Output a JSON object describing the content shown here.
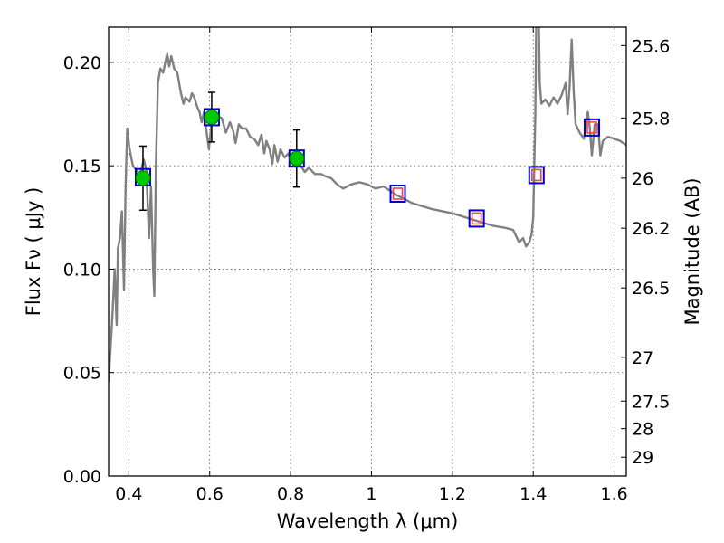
{
  "chart_data": {
    "type": "line",
    "title": "",
    "xlabel": "Wavelength  λ (μm)",
    "ylabel": "Flux  Fν  ( μJy )",
    "y2label": "Magnitude (AB)",
    "xlim": [
      0.35,
      1.63
    ],
    "ylim": [
      0.0,
      0.217
    ],
    "grid": true,
    "x_ticks": [
      0.4,
      0.6,
      0.8,
      1.0,
      1.2,
      1.4,
      1.6
    ],
    "x_tick_labels": [
      "0.4",
      "0.6",
      "0.8",
      "1",
      "1.2",
      "1.4",
      "1.6"
    ],
    "y_ticks": [
      0.0,
      0.05,
      0.1,
      0.15,
      0.2
    ],
    "y_tick_labels": [
      "0.00",
      "0.05",
      "0.10",
      "0.15",
      "0.20"
    ],
    "y2_ticks": [
      {
        "label": "25.6",
        "flux": 0.2081
      },
      {
        "label": "25.8",
        "flux": 0.1731
      },
      {
        "label": "26",
        "flux": 0.144
      },
      {
        "label": "26.2",
        "flux": 0.1198
      },
      {
        "label": "26.5",
        "flux": 0.0909
      },
      {
        "label": "27",
        "flux": 0.0574
      },
      {
        "label": "27.5",
        "flux": 0.0362
      },
      {
        "label": "28",
        "flux": 0.0229
      },
      {
        "label": "29",
        "flux": 0.0091
      }
    ],
    "series": [
      {
        "kind": "model_spectrum",
        "color": "#808080",
        "points": [
          [
            0.35,
            0.045
          ],
          [
            0.36,
            0.08
          ],
          [
            0.365,
            0.1
          ],
          [
            0.37,
            0.073
          ],
          [
            0.373,
            0.11
          ],
          [
            0.378,
            0.115
          ],
          [
            0.383,
            0.128
          ],
          [
            0.388,
            0.09
          ],
          [
            0.392,
            0.14
          ],
          [
            0.396,
            0.168
          ],
          [
            0.402,
            0.158
          ],
          [
            0.41,
            0.15
          ],
          [
            0.418,
            0.148
          ],
          [
            0.425,
            0.145
          ],
          [
            0.43,
            0.148
          ],
          [
            0.437,
            0.153
          ],
          [
            0.443,
            0.148
          ],
          [
            0.45,
            0.115
          ],
          [
            0.455,
            0.14
          ],
          [
            0.46,
            0.1
          ],
          [
            0.463,
            0.087
          ],
          [
            0.467,
            0.15
          ],
          [
            0.472,
            0.19
          ],
          [
            0.478,
            0.197
          ],
          [
            0.485,
            0.195
          ],
          [
            0.49,
            0.2
          ],
          [
            0.495,
            0.204
          ],
          [
            0.5,
            0.198
          ],
          [
            0.505,
            0.203
          ],
          [
            0.512,
            0.197
          ],
          [
            0.52,
            0.195
          ],
          [
            0.528,
            0.186
          ],
          [
            0.535,
            0.18
          ],
          [
            0.54,
            0.183
          ],
          [
            0.55,
            0.181
          ],
          [
            0.556,
            0.185
          ],
          [
            0.562,
            0.183
          ],
          [
            0.57,
            0.178
          ],
          [
            0.575,
            0.176
          ],
          [
            0.58,
            0.171
          ],
          [
            0.586,
            0.176
          ],
          [
            0.592,
            0.167
          ],
          [
            0.598,
            0.158
          ],
          [
            0.605,
            0.172
          ],
          [
            0.612,
            0.176
          ],
          [
            0.62,
            0.174
          ],
          [
            0.63,
            0.173
          ],
          [
            0.64,
            0.166
          ],
          [
            0.65,
            0.171
          ],
          [
            0.658,
            0.167
          ],
          [
            0.664,
            0.161
          ],
          [
            0.672,
            0.17
          ],
          [
            0.68,
            0.168
          ],
          [
            0.69,
            0.168
          ],
          [
            0.7,
            0.164
          ],
          [
            0.71,
            0.163
          ],
          [
            0.72,
            0.16
          ],
          [
            0.728,
            0.165
          ],
          [
            0.735,
            0.156
          ],
          [
            0.74,
            0.162
          ],
          [
            0.748,
            0.158
          ],
          [
            0.755,
            0.151
          ],
          [
            0.76,
            0.16
          ],
          [
            0.768,
            0.152
          ],
          [
            0.775,
            0.158
          ],
          [
            0.785,
            0.154
          ],
          [
            0.795,
            0.156
          ],
          [
            0.8,
            0.152
          ],
          [
            0.808,
            0.15
          ],
          [
            0.815,
            0.154
          ],
          [
            0.825,
            0.15
          ],
          [
            0.835,
            0.147
          ],
          [
            0.845,
            0.149
          ],
          [
            0.86,
            0.146
          ],
          [
            0.875,
            0.146
          ],
          [
            0.885,
            0.145
          ],
          [
            0.9,
            0.144
          ],
          [
            0.915,
            0.141
          ],
          [
            0.93,
            0.139
          ],
          [
            0.95,
            0.141
          ],
          [
            0.97,
            0.142
          ],
          [
            0.99,
            0.141
          ],
          [
            1.01,
            0.139
          ],
          [
            1.03,
            0.14
          ],
          [
            1.06,
            0.136
          ],
          [
            1.1,
            0.132
          ],
          [
            1.15,
            0.129
          ],
          [
            1.2,
            0.127
          ],
          [
            1.25,
            0.124
          ],
          [
            1.3,
            0.121
          ],
          [
            1.33,
            0.12
          ],
          [
            1.35,
            0.119
          ],
          [
            1.365,
            0.113
          ],
          [
            1.375,
            0.115
          ],
          [
            1.382,
            0.111
          ],
          [
            1.39,
            0.113
          ],
          [
            1.396,
            0.117
          ],
          [
            1.4,
            0.125
          ],
          [
            1.405,
            0.175
          ],
          [
            1.408,
            0.23
          ],
          [
            1.413,
            0.23
          ],
          [
            1.416,
            0.19
          ],
          [
            1.42,
            0.18
          ],
          [
            1.43,
            0.182
          ],
          [
            1.44,
            0.179
          ],
          [
            1.45,
            0.183
          ],
          [
            1.46,
            0.18
          ],
          [
            1.47,
            0.184
          ],
          [
            1.48,
            0.19
          ],
          [
            1.485,
            0.175
          ],
          [
            1.49,
            0.188
          ],
          [
            1.495,
            0.211
          ],
          [
            1.5,
            0.186
          ],
          [
            1.505,
            0.17
          ],
          [
            1.515,
            0.166
          ],
          [
            1.525,
            0.163
          ],
          [
            1.535,
            0.176
          ],
          [
            1.54,
            0.168
          ],
          [
            1.545,
            0.155
          ],
          [
            1.552,
            0.17
          ],
          [
            1.56,
            0.17
          ],
          [
            1.566,
            0.155
          ],
          [
            1.572,
            0.162
          ],
          [
            1.585,
            0.164
          ],
          [
            1.6,
            0.163
          ],
          [
            1.615,
            0.162
          ],
          [
            1.63,
            0.16
          ]
        ]
      },
      {
        "kind": "observed_points",
        "color": "#00c800",
        "errorbar_color": "#000000",
        "points": [
          {
            "x": 0.435,
            "y": 0.144,
            "err": 0.0155
          },
          {
            "x": 0.605,
            "y": 0.1735,
            "err": 0.012
          },
          {
            "x": 0.815,
            "y": 0.1535,
            "err": 0.0138
          }
        ]
      },
      {
        "kind": "model_photometry",
        "color": "#0000cc",
        "points": [
          {
            "x": 0.435,
            "y": 0.1445
          },
          {
            "x": 0.605,
            "y": 0.1735
          },
          {
            "x": 0.815,
            "y": 0.1535
          },
          {
            "x": 1.065,
            "y": 0.1365
          },
          {
            "x": 1.26,
            "y": 0.1245
          },
          {
            "x": 1.408,
            "y": 0.1455
          },
          {
            "x": 1.545,
            "y": 0.1685
          }
        ]
      },
      {
        "kind": "synthetic_photometry",
        "color": "#ff4040",
        "points": [
          {
            "x": 1.065,
            "y": 0.1365
          },
          {
            "x": 1.26,
            "y": 0.1245
          },
          {
            "x": 1.408,
            "y": 0.1455
          },
          {
            "x": 1.545,
            "y": 0.1685
          }
        ]
      }
    ]
  }
}
